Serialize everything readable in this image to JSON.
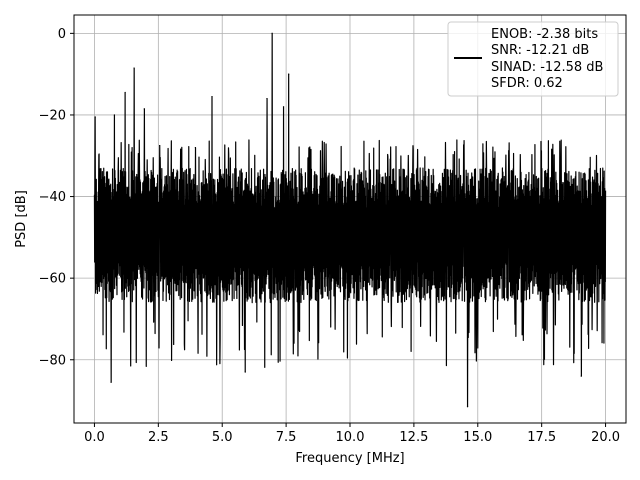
{
  "chart_data": {
    "type": "line",
    "xlabel": "Frequency [MHz]",
    "ylabel": "PSD [dB]",
    "xlim": [
      -0.8,
      20.8
    ],
    "ylim": [
      -95.5,
      4.5
    ],
    "xticks": [
      0.0,
      2.5,
      5.0,
      7.5,
      10.0,
      12.5,
      15.0,
      17.5,
      20.0
    ],
    "xtick_labels": [
      "0.0",
      "2.5",
      "5.0",
      "7.5",
      "10.0",
      "12.5",
      "15.0",
      "17.5",
      "20.0"
    ],
    "yticks": [
      0,
      -20,
      -40,
      -60,
      -80
    ],
    "ytick_labels": [
      "0",
      "−20",
      "−40",
      "−60",
      "−80"
    ],
    "grid": true,
    "legend_position": "top-right",
    "legend_entries": [
      "ENOB: -2.38 bits",
      "SNR: -12.21 dB",
      "SINAD: -12.58 dB",
      "SFDR: 0.62"
    ],
    "series": [
      {
        "color": "#000000",
        "noise_band_db": [
          -66,
          -33
        ],
        "noise_floor_db": -50,
        "peaks": [
          {
            "x": 0.03,
            "y": -20.5
          },
          {
            "x": 0.78,
            "y": -20.0
          },
          {
            "x": 1.2,
            "y": -14.5
          },
          {
            "x": 1.55,
            "y": -8.5
          },
          {
            "x": 1.95,
            "y": -18.5
          },
          {
            "x": 2.55,
            "y": -27.5
          },
          {
            "x": 3.95,
            "y": -28.0
          },
          {
            "x": 4.6,
            "y": -15.5
          },
          {
            "x": 6.75,
            "y": -16.0
          },
          {
            "x": 6.95,
            "y": 0.0
          },
          {
            "x": 7.4,
            "y": -18.0
          },
          {
            "x": 7.6,
            "y": -10.0
          }
        ],
        "dips": [
          {
            "x": 0.65,
            "y": -85.5
          },
          {
            "x": 5.9,
            "y": -83.0
          },
          {
            "x": 14.6,
            "y": -91.5
          },
          {
            "x": 19.05,
            "y": -84.0
          }
        ]
      }
    ]
  }
}
